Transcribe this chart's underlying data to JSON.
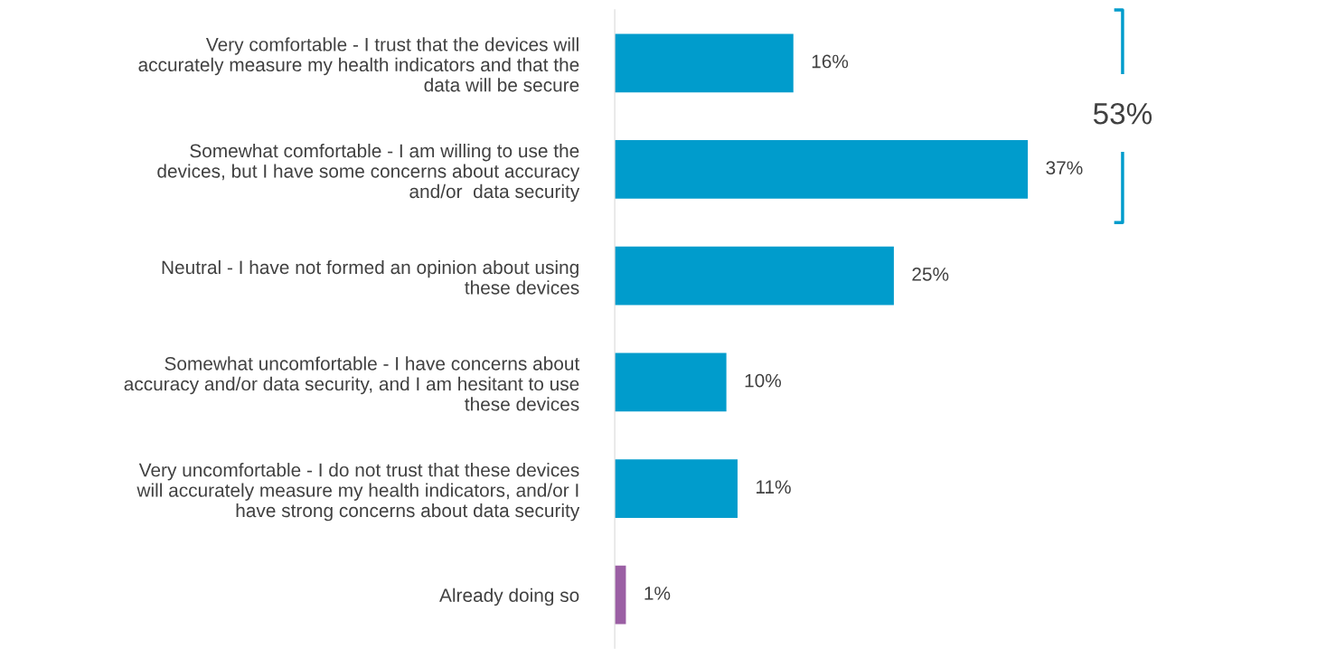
{
  "chart_data": {
    "type": "bar",
    "orientation": "horizontal",
    "categories": [
      "Very comfortable - I trust that the devices will\naccurately measure my health indicators and that the\ndata will be secure",
      "Somewhat comfortable - I am willing to use the\ndevices, but I have some concerns about accuracy\nand/or  data security",
      "Neutral - I have not formed an opinion about using\nthese devices",
      "Somewhat uncomfortable - I have concerns about\naccuracy and/or data security, and I am hesitant to use\nthese devices",
      "Very uncomfortable - I do not trust that these devices\nwill accurately measure my health indicators, and/or I\nhave strong concerns about data security",
      "Already doing so"
    ],
    "values": [
      16,
      37,
      25,
      10,
      11,
      1
    ],
    "colors": [
      "#009ccc",
      "#009ccc",
      "#009ccc",
      "#009ccc",
      "#009ccc",
      "#9b5fa4"
    ],
    "tick_labels": "y",
    "grid": false,
    "legend": false,
    "value_labels": [
      "16%",
      "37%",
      "25%",
      "10%",
      "11%",
      "1%"
    ],
    "annotations": [
      "53%"
    ]
  }
}
